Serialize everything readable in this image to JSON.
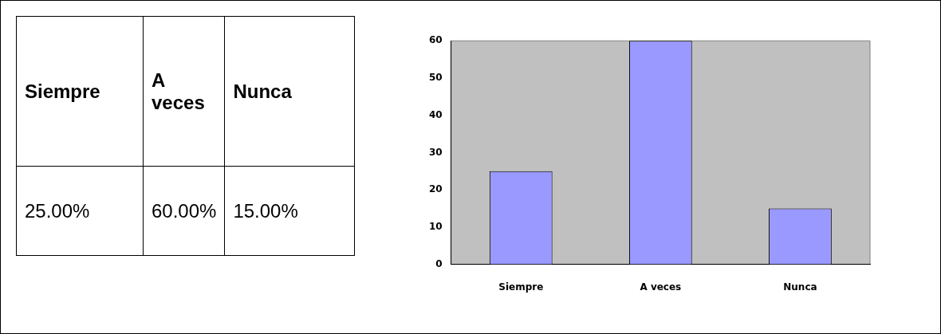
{
  "chart_data": [
    {
      "type": "other",
      "categories": [
        "Siempre",
        "A veces",
        "Nunca"
      ],
      "values": [
        25,
        60,
        15
      ],
      "value_labels": [
        "25.00%",
        "60.00%",
        "15.00%"
      ]
    },
    {
      "type": "bar",
      "categories": [
        "Siempre",
        "A veces",
        "Nunca"
      ],
      "values": [
        25,
        60,
        15
      ],
      "color": "#9999ff",
      "ylim": [
        0,
        60
      ],
      "yticks": [
        0,
        10,
        20,
        30,
        40,
        50,
        60
      ],
      "grid": false,
      "legend": false
    }
  ]
}
